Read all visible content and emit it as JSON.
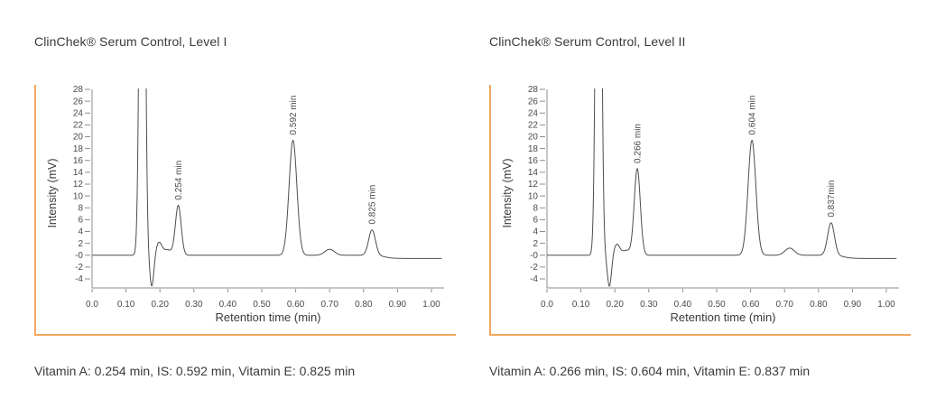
{
  "colors": {
    "accent_border": "#f2a95f",
    "trace": "#4d4d4d",
    "axis": "#8c8c8c",
    "tick_text": "#4a4a4a",
    "text": "#3a3a3a",
    "background": "#ffffff"
  },
  "panels": [
    {
      "title": "ClinChek® Serum Control, Level I",
      "caption": "Vitamin A: 0.254 min, IS: 0.592 min, Vitamin E: 0.825 min"
    },
    {
      "title": "ClinChek® Serum Control, Level II",
      "caption": "Vitamin A: 0.266 min, IS: 0.604 min, Vitamin E: 0.837 min"
    }
  ],
  "chart_data": [
    {
      "type": "line",
      "title": "ClinChek® Serum Control, Level I",
      "xlabel": "Retention time (min)",
      "ylabel": "Intensity (mV)",
      "xlim": [
        0,
        1.03
      ],
      "ylim": [
        -5.5,
        28
      ],
      "grid": false,
      "legend": false,
      "xticks": [
        0,
        0.1,
        0.2,
        0.3,
        0.4,
        0.5,
        0.6,
        0.7,
        0.8,
        0.9,
        1.0
      ],
      "xtick_labels": [
        "0.0",
        "0.10",
        "0.20",
        "0.30",
        "0.40",
        "0.50",
        "0.60",
        "0.70",
        "0.80",
        "0.90",
        "1.00"
      ],
      "ytick_values": [
        28,
        26,
        24,
        22,
        20,
        18,
        16,
        14,
        12,
        10,
        8,
        6,
        4,
        2,
        0,
        -2,
        -4
      ],
      "ytick_labels": [
        "28",
        "26",
        "24",
        "22",
        "20",
        "18",
        "16",
        "14",
        "12",
        "10",
        "8",
        "6",
        "4",
        "2",
        "-0",
        "-2",
        "-4"
      ],
      "peaks": [
        {
          "name": "injection-front",
          "center": 0.148,
          "height": 120,
          "sigma": 0.0068
        },
        {
          "name": "injection-dip",
          "center": 0.176,
          "height": -5.3,
          "sigma": 0.006
        },
        {
          "name": "recovery-bump",
          "center": 0.197,
          "height": 2.1,
          "sigma": 0.0085
        },
        {
          "name": "bridge",
          "center": 0.222,
          "height": 0.9,
          "sigma": 0.012
        },
        {
          "name": "vitamin-a",
          "center": 0.254,
          "height": 8.4,
          "sigma": 0.0085,
          "label": "0.254 min"
        },
        {
          "name": "internal-standard",
          "center": 0.592,
          "height": 19.4,
          "sigma": 0.0115,
          "label": "0.592 min"
        },
        {
          "name": "minor-peak",
          "center": 0.7,
          "height": 1.0,
          "sigma": 0.014
        },
        {
          "name": "vitamin-e",
          "center": 0.825,
          "height": 4.3,
          "sigma": 0.01,
          "label": "0.825 min"
        }
      ],
      "end_baseline": {
        "start": 0.862,
        "offset": -0.55
      },
      "retention_times": {
        "vitamin_a": "0.254 min",
        "is": "0.592 min",
        "vitamin_e": "0.825 min"
      }
    },
    {
      "type": "line",
      "title": "ClinChek® Serum Control, Level II",
      "xlabel": "Retention time (min)",
      "ylabel": "Intensity (mV)",
      "xlim": [
        0,
        1.03
      ],
      "ylim": [
        -5.5,
        28
      ],
      "grid": false,
      "legend": false,
      "xticks": [
        0,
        0.1,
        0.2,
        0.3,
        0.4,
        0.5,
        0.6,
        0.7,
        0.8,
        0.9,
        1.0
      ],
      "xtick_labels": [
        "0.0",
        "0.10",
        "0.20",
        "0.30",
        "0.40",
        "0.50",
        "0.60",
        "0.70",
        "0.80",
        "0.90",
        "1.00"
      ],
      "ytick_values": [
        28,
        26,
        24,
        22,
        20,
        18,
        16,
        14,
        12,
        10,
        8,
        6,
        4,
        2,
        0,
        -2,
        -4
      ],
      "ytick_labels": [
        "28",
        "26",
        "24",
        "22",
        "20",
        "18",
        "16",
        "14",
        "12",
        "10",
        "8",
        "6",
        "4",
        "2",
        "-0",
        "-2",
        "-4"
      ],
      "peaks": [
        {
          "name": "injection-front",
          "center": 0.152,
          "height": 120,
          "sigma": 0.0068
        },
        {
          "name": "injection-dip",
          "center": 0.184,
          "height": -5.3,
          "sigma": 0.006
        },
        {
          "name": "recovery-bump",
          "center": 0.206,
          "height": 1.8,
          "sigma": 0.0085
        },
        {
          "name": "bridge",
          "center": 0.234,
          "height": 0.8,
          "sigma": 0.012
        },
        {
          "name": "vitamin-a",
          "center": 0.266,
          "height": 14.6,
          "sigma": 0.009,
          "label": "0.266 min"
        },
        {
          "name": "internal-standard",
          "center": 0.604,
          "height": 19.4,
          "sigma": 0.0115,
          "label": "0.604 min"
        },
        {
          "name": "minor-peak",
          "center": 0.715,
          "height": 1.2,
          "sigma": 0.014
        },
        {
          "name": "vitamin-e",
          "center": 0.837,
          "height": 5.5,
          "sigma": 0.01,
          "label": "0.837min"
        }
      ],
      "end_baseline": {
        "start": 0.875,
        "offset": -0.55
      },
      "retention_times": {
        "vitamin_a": "0.266 min",
        "is": "0.604 min",
        "vitamin_e": "0.837 min"
      }
    }
  ]
}
